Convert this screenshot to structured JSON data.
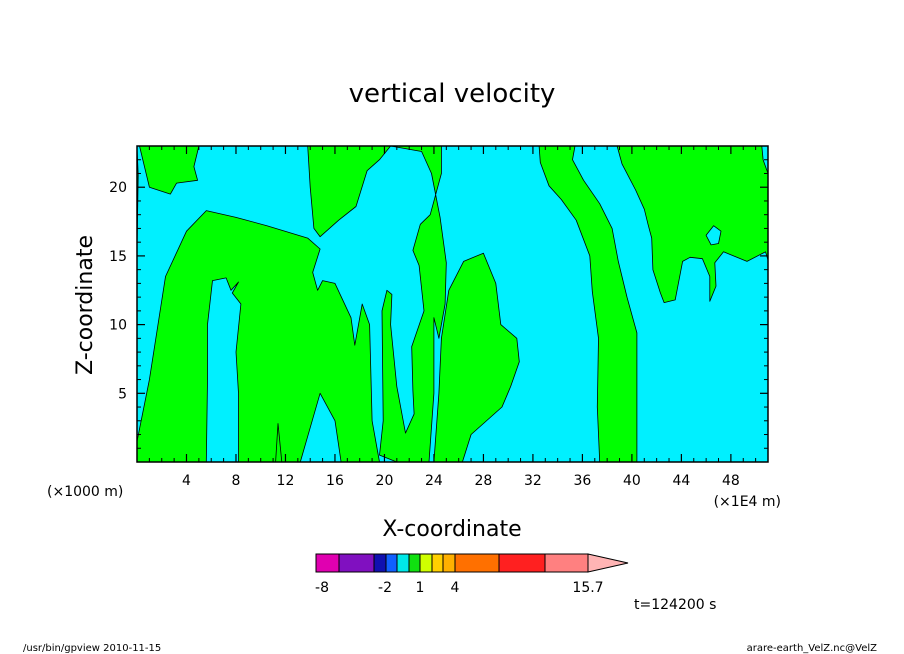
{
  "colors": {
    "positive": "#00ff00",
    "negative": "#00f0ff",
    "frame": "#000000"
  },
  "chart_data": {
    "type": "heatmap",
    "title": "vertical velocity",
    "xlabel": "X-coordinate",
    "ylabel": "Z-coordinate",
    "x_scale_note": "(×1E4 m)",
    "y_scale_note": "(×1000 m)",
    "xlim": [
      0,
      51
    ],
    "ylim": [
      0,
      23
    ],
    "x_ticks": [
      "4",
      "8",
      "12",
      "16",
      "20",
      "24",
      "28",
      "32",
      "36",
      "40",
      "44",
      "48"
    ],
    "y_ticks": [
      "5",
      "10",
      "15",
      "20"
    ],
    "positive_regions": [
      {
        "name": "left-edge",
        "points": [
          [
            0,
            1.5
          ],
          [
            1,
            6
          ],
          [
            2.3,
            13.5
          ],
          [
            4,
            16.8
          ],
          [
            5.6,
            18.3
          ],
          [
            8,
            17.8
          ],
          [
            10.5,
            17.2
          ],
          [
            13.8,
            16.3
          ],
          [
            14.8,
            15.5
          ],
          [
            14.2,
            13.8
          ],
          [
            14.6,
            12.5
          ],
          [
            15,
            13.2
          ],
          [
            16,
            13
          ],
          [
            17.3,
            10.5
          ],
          [
            17.6,
            8.5
          ],
          [
            18.2,
            11.5
          ],
          [
            18.8,
            10
          ],
          [
            19,
            3
          ],
          [
            19.6,
            0
          ],
          [
            16.5,
            0
          ],
          [
            16,
            3
          ],
          [
            14.8,
            5
          ],
          [
            14,
            2.5
          ],
          [
            13.2,
            0
          ],
          [
            11.2,
            0
          ],
          [
            11.4,
            2.8
          ],
          [
            11.7,
            0
          ],
          [
            8.2,
            0
          ],
          [
            8.2,
            5
          ],
          [
            8,
            8
          ],
          [
            8.4,
            11.5
          ],
          [
            7.7,
            12.3
          ],
          [
            8.2,
            13.1
          ],
          [
            7.6,
            12.5
          ],
          [
            7.2,
            13.4
          ],
          [
            6.1,
            13.2
          ],
          [
            5.7,
            10
          ],
          [
            5.7,
            6
          ],
          [
            5.6,
            0
          ],
          [
            0,
            0
          ]
        ]
      },
      {
        "name": "left-top",
        "points": [
          [
            0,
            23
          ],
          [
            5,
            23
          ],
          [
            4.6,
            21.5
          ],
          [
            4.9,
            20.5
          ],
          [
            3.2,
            20.3
          ],
          [
            2.7,
            19.5
          ],
          [
            1,
            20
          ],
          [
            0.2,
            23
          ]
        ]
      },
      {
        "name": "left-top-edge",
        "points": [
          [
            0,
            15.5
          ],
          [
            0,
            22.9
          ],
          [
            0.1,
            20.9
          ]
        ]
      },
      {
        "name": "top-mid",
        "points": [
          [
            13.8,
            23
          ],
          [
            24.6,
            23
          ],
          [
            24.6,
            21
          ],
          [
            23.7,
            18
          ],
          [
            22.9,
            17.3
          ],
          [
            22.3,
            15.4
          ],
          [
            22.8,
            14.3
          ],
          [
            23.2,
            11
          ],
          [
            22.2,
            8.4
          ],
          [
            22.3,
            5.2
          ],
          [
            22.4,
            3.5
          ],
          [
            21.7,
            2.1
          ],
          [
            21,
            5.5
          ],
          [
            20.5,
            10
          ],
          [
            20.6,
            12.2
          ],
          [
            20.2,
            12.5
          ],
          [
            19.8,
            11
          ],
          [
            19.9,
            3
          ],
          [
            19.6,
            0.5
          ],
          [
            21,
            0
          ],
          [
            23.6,
            0
          ],
          [
            24,
            5
          ],
          [
            24,
            10.5
          ],
          [
            24.4,
            9
          ],
          [
            24.9,
            11.5
          ],
          [
            25,
            14.5
          ],
          [
            24.5,
            17.8
          ],
          [
            23.8,
            21
          ],
          [
            23,
            22.6
          ],
          [
            20.5,
            23
          ],
          [
            19.6,
            22
          ],
          [
            18.6,
            21.2
          ],
          [
            17.7,
            18.6
          ],
          [
            16.3,
            17.6
          ],
          [
            14.8,
            16.4
          ],
          [
            14.3,
            17
          ],
          [
            14,
            20
          ],
          [
            13.8,
            23
          ]
        ]
      },
      {
        "name": "center-plume",
        "points": [
          [
            24,
            0
          ],
          [
            26.3,
            0
          ],
          [
            27,
            2
          ],
          [
            29.5,
            4
          ],
          [
            30.2,
            5.5
          ],
          [
            30.9,
            7.3
          ],
          [
            30.7,
            9
          ],
          [
            29.4,
            10
          ],
          [
            29,
            13
          ],
          [
            28,
            15.2
          ],
          [
            26.4,
            14.6
          ],
          [
            25.2,
            12.5
          ],
          [
            24.6,
            9
          ],
          [
            24.4,
            5
          ],
          [
            24,
            0
          ]
        ]
      },
      {
        "name": "right-band",
        "points": [
          [
            32.5,
            23
          ],
          [
            35.4,
            23
          ],
          [
            35.2,
            22
          ],
          [
            36.1,
            20.5
          ],
          [
            37.4,
            18.8
          ],
          [
            38.4,
            17
          ],
          [
            38.9,
            14.6
          ],
          [
            39.6,
            12
          ],
          [
            40.4,
            9.4
          ],
          [
            40.4,
            0
          ],
          [
            37.4,
            0
          ],
          [
            37.2,
            4
          ],
          [
            37.3,
            9
          ],
          [
            36.8,
            12.4
          ],
          [
            36.6,
            15
          ],
          [
            35.5,
            17.6
          ],
          [
            34.3,
            19.1
          ],
          [
            33.3,
            20.1
          ],
          [
            32.6,
            21.8
          ],
          [
            32.5,
            23
          ]
        ]
      },
      {
        "name": "far-right",
        "points": [
          [
            38.8,
            23
          ],
          [
            51,
            23
          ],
          [
            51,
            14.7
          ],
          [
            50.8,
            15.3
          ],
          [
            49.3,
            14.6
          ],
          [
            47.4,
            15.3
          ],
          [
            46.7,
            14.5
          ],
          [
            46.8,
            12.8
          ],
          [
            46.3,
            11.7
          ],
          [
            46.3,
            13.5
          ],
          [
            45.7,
            14.8
          ],
          [
            44.7,
            14.9
          ],
          [
            44.1,
            14.6
          ],
          [
            43.5,
            11.8
          ],
          [
            42.6,
            11.6
          ],
          [
            42.3,
            12.3
          ],
          [
            41.7,
            14
          ],
          [
            41.6,
            16.3
          ],
          [
            41.3,
            17.3
          ],
          [
            41,
            18.4
          ],
          [
            40.3,
            19.8
          ],
          [
            39.2,
            21.7
          ],
          [
            38.8,
            23
          ]
        ]
      }
    ],
    "negative_regions": [
      {
        "name": "far-right-hole",
        "points": [
          [
            46,
            16.5
          ],
          [
            46.6,
            17.2
          ],
          [
            47.2,
            16.8
          ],
          [
            47,
            15.9
          ],
          [
            46.4,
            15.8
          ]
        ]
      },
      {
        "name": "far-right-notch",
        "points": [
          [
            50.5,
            23
          ],
          [
            51,
            23
          ],
          [
            51,
            21
          ],
          [
            50.6,
            22
          ]
        ]
      }
    ],
    "colorbar": {
      "tick_labels": [
        "-8",
        "-2",
        "1",
        "4",
        "15.7"
      ],
      "colors": [
        "#e000b0",
        "#8010c0",
        "#1010b0",
        "#1060ff",
        "#00e8e8",
        "#10e010",
        "#d0ff00",
        "#ffd000",
        "#ffb000",
        "#ff7000",
        "#ff2020",
        "#ff8080",
        "#ffb4b4"
      ]
    },
    "time_label": "t=124200 s"
  },
  "footer": {
    "left": "/usr/bin/gpview   2010-11-15",
    "right": "arare-earth_VelZ.nc@VelZ"
  }
}
